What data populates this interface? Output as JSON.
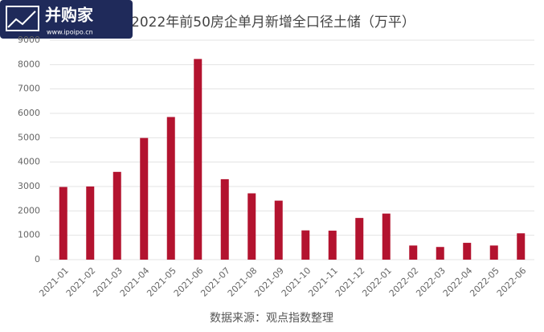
{
  "logo": {
    "name": "并购家",
    "url": "www.ipoipo.cn"
  },
  "chart_data": {
    "type": "bar",
    "title": "2022年前50房企单月新增全口径土储（万平）",
    "source": "数据来源：观点指数整理",
    "categories": [
      "2021-01",
      "2021-02",
      "2021-03",
      "2021-04",
      "2021-05",
      "2021-06",
      "2021-07",
      "2021-08",
      "2021-09",
      "2021-10",
      "2021-11",
      "2021-12",
      "2022-01",
      "2022-02",
      "2022-03",
      "2022-04",
      "2022-05",
      "2022-06"
    ],
    "values": [
      2980,
      3000,
      3600,
      4990,
      5850,
      8230,
      3300,
      2720,
      2420,
      1200,
      1190,
      1710,
      1890,
      580,
      520,
      690,
      580,
      1080
    ],
    "color": "#b3132f",
    "ylim": [
      0,
      9000
    ],
    "yticks": [
      0,
      1000,
      2000,
      3000,
      4000,
      5000,
      6000,
      7000,
      8000,
      9000
    ],
    "grid": true
  }
}
